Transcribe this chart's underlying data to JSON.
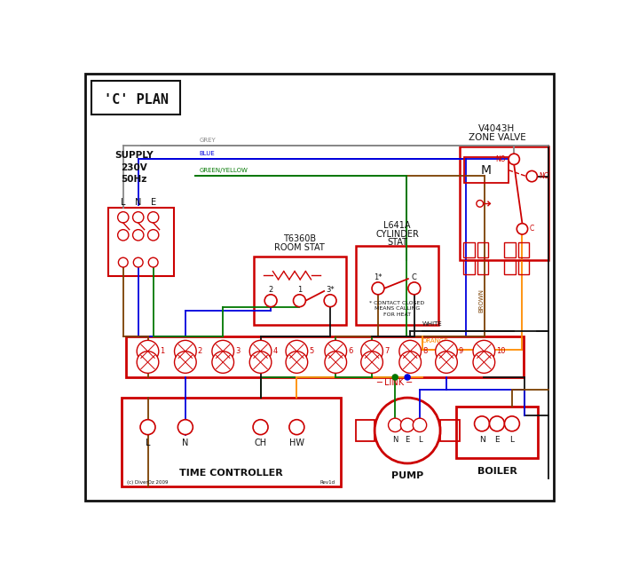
{
  "title": "'C' PLAN",
  "bg_color": "#ffffff",
  "red": "#cc0000",
  "blue": "#0000dd",
  "green": "#007700",
  "brown": "#7B3F00",
  "grey": "#888888",
  "orange": "#FF8C00",
  "black": "#111111",
  "figw": 7.02,
  "figh": 6.41,
  "dpi": 100,
  "term_labels": [
    "1",
    "2",
    "3",
    "4",
    "5",
    "6",
    "7",
    "8",
    "9",
    "10"
  ],
  "tc_terms": [
    "L",
    "N",
    "CH",
    "HW"
  ],
  "supply_lines": [
    "SUPPLY",
    "230V",
    "50Hz"
  ],
  "zv_lines": [
    "V4043H",
    "ZONE VALVE"
  ],
  "rs_lines": [
    "T6360B",
    "ROOM STAT"
  ],
  "cs_lines": [
    "L641A",
    "CYLINDER",
    "STAT"
  ],
  "note_lines": [
    "* CONTACT CLOSED",
    "MEANS CALLING",
    "FOR HEAT"
  ],
  "copyright": "(c) DiverOz 2009",
  "rev": "Rev1d"
}
